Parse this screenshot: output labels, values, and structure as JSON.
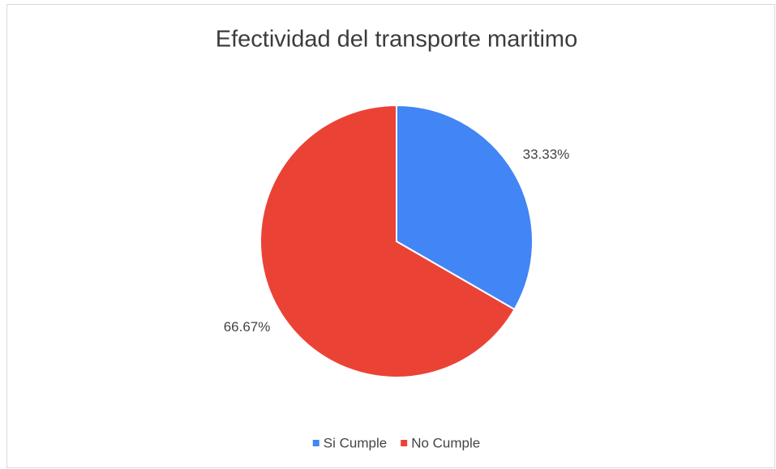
{
  "chart_data": {
    "type": "pie",
    "title": "Efectividad del transporte maritimo",
    "categories": [
      "Si Cumple",
      "No Cumple"
    ],
    "values": [
      33.33,
      66.67
    ],
    "value_labels": [
      "33.33%",
      "66.67%"
    ],
    "colors": [
      "#4285f4",
      "#ea4335"
    ],
    "legend": "bottom"
  }
}
